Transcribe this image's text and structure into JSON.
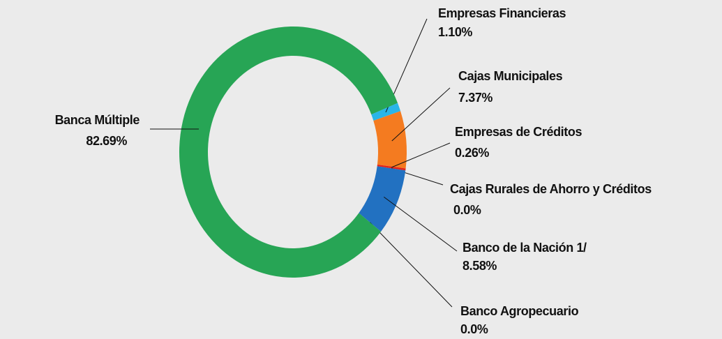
{
  "chart_data": {
    "type": "donut",
    "categories": [
      "Empresas Financieras",
      "Cajas Municipales",
      "Empresas de Créditos",
      "Cajas Rurales de Ahorro y  Créditos",
      "Banco de la Nación 1/",
      "Banco Agropecuario",
      "Banca Múltiple"
    ],
    "values": [
      1.1,
      7.37,
      0.26,
      0,
      8.58,
      0,
      82.69
    ],
    "value_labels": [
      "1.10%",
      "7.37%",
      "0.26%",
      "0.0%",
      "8.58%",
      "0.0%",
      "82.69%"
    ],
    "colors": [
      "#29b5e8",
      "#f47b20",
      "#e2231a",
      "#8e44ad",
      "#2271c1",
      "#6d8f3a",
      "#27a555"
    ]
  }
}
